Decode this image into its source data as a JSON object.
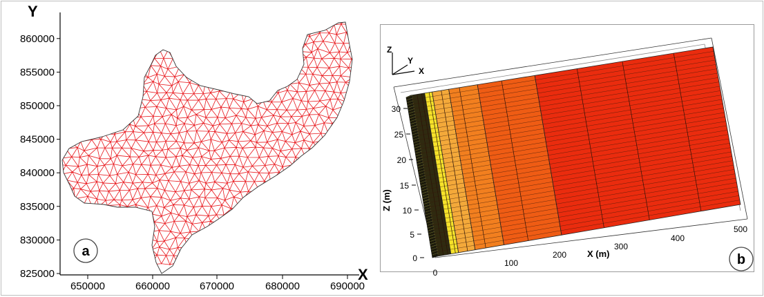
{
  "panel_a": {
    "x_axis_title": "X",
    "y_axis_title": "Y",
    "x_ticks": [
      "650000",
      "660000",
      "670000",
      "680000",
      "690000"
    ],
    "y_ticks": [
      "825000",
      "830000",
      "835000",
      "840000",
      "845000",
      "850000",
      "855000",
      "860000"
    ],
    "label": "a",
    "mesh_color": "#e8161b",
    "boundary_color": "#333333"
  },
  "panel_b": {
    "triad": {
      "z": "Z",
      "y": "Y",
      "x": "X"
    },
    "z_axis_title": "Z (m)",
    "x_axis_title": "X (m)",
    "z_ticks": [
      "0",
      "5",
      "10",
      "15",
      "20",
      "25",
      "30"
    ],
    "x_ticks": [
      "0",
      "100",
      "200",
      "300",
      "400",
      "500"
    ],
    "label": "b",
    "layer_colors": [
      "#2f2a10",
      "#f6e22a",
      "#f4a93a",
      "#f27f1f",
      "#ef5c14",
      "#ea2c0e"
    ]
  }
}
